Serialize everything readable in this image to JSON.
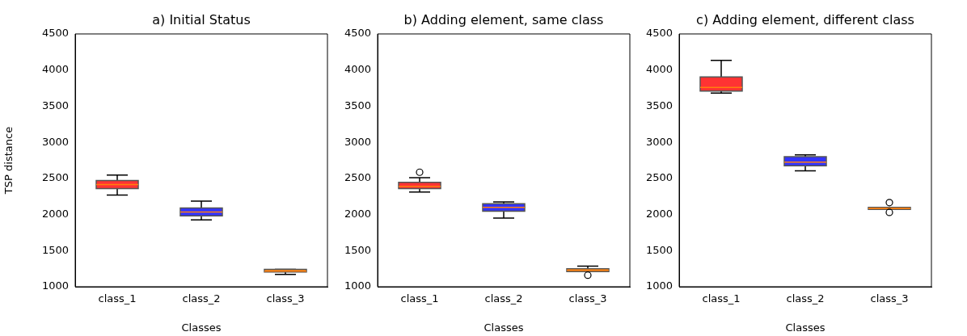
{
  "chart_data": [
    {
      "type": "box",
      "title": "a) Initial Status",
      "xlabel": "Classes",
      "ylabel": "TSP distance",
      "categories": [
        "class_1",
        "class_2",
        "class_3"
      ],
      "colors": [
        "#ff3333",
        "#3333ff",
        "#ff8c1a"
      ],
      "ylim": [
        1000,
        4500
      ],
      "yticks": [
        1000,
        1500,
        2000,
        2500,
        3000,
        3500,
        4000,
        4500
      ],
      "boxes": [
        {
          "low": 2270,
          "q1": 2360,
          "median": 2415,
          "q3": 2470,
          "high": 2545
        },
        {
          "low": 1925,
          "q1": 1980,
          "median": 2035,
          "q3": 2090,
          "high": 2185
        },
        {
          "low": 1170,
          "q1": 1205,
          "median": 1215,
          "q3": 1240,
          "high": 1240
        }
      ]
    },
    {
      "type": "box",
      "title": "b) Adding element, same class",
      "xlabel": "Classes",
      "categories": [
        "class_1",
        "class_2",
        "class_3"
      ],
      "colors": [
        "#ff3333",
        "#3333ff",
        "#ff8c1a"
      ],
      "ylim": [
        1000,
        4500
      ],
      "yticks": [
        1000,
        1500,
        2000,
        2500,
        3000,
        3500,
        4000,
        4500
      ],
      "boxes": [
        {
          "low": 2310,
          "q1": 2360,
          "median": 2390,
          "q3": 2445,
          "high": 2510,
          "outliers": [
            2585
          ]
        },
        {
          "low": 1950,
          "q1": 2045,
          "median": 2100,
          "q3": 2150,
          "high": 2175
        },
        {
          "low": 1210,
          "q1": 1210,
          "median": 1230,
          "q3": 1250,
          "high": 1285,
          "outliers": [
            1160
          ]
        }
      ]
    },
    {
      "type": "box",
      "title": "c) Adding element, different class",
      "xlabel": "Classes",
      "categories": [
        "class_1",
        "class_2",
        "class_3"
      ],
      "colors": [
        "#ff3333",
        "#3333ff",
        "#ff8c1a"
      ],
      "ylim": [
        1000,
        4500
      ],
      "yticks": [
        1000,
        1500,
        2000,
        2500,
        3000,
        3500,
        4000,
        4500
      ],
      "boxes": [
        {
          "low": 3680,
          "q1": 3710,
          "median": 3760,
          "q3": 3905,
          "high": 4135
        },
        {
          "low": 2605,
          "q1": 2675,
          "median": 2725,
          "q3": 2800,
          "high": 2825
        },
        {
          "low": 2070,
          "q1": 2070,
          "median": 2085,
          "q3": 2100,
          "high": 2100,
          "outliers": [
            2165,
            2030
          ]
        }
      ]
    }
  ]
}
